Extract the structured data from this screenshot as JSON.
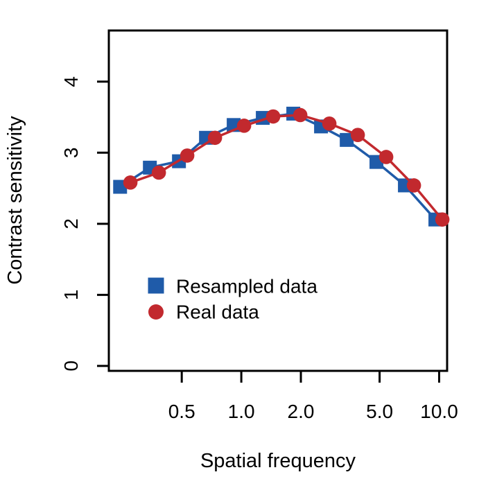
{
  "chart_data": {
    "type": "line",
    "title": "",
    "xlabel": "Spatial frequency",
    "ylabel": "Contrast sensitivity",
    "x_scale": "log",
    "y_scale": "linear",
    "xlim": [
      0.214,
      10.97
    ],
    "ylim": [
      -0.07,
      4.72
    ],
    "grid": false,
    "box": true,
    "x_ticks": {
      "values": [
        0.5,
        1.0,
        2.0,
        5.0,
        10.0
      ],
      "labels": [
        "0.5",
        "1.0",
        "2.0",
        "5.0",
        "10.0"
      ]
    },
    "y_ticks": {
      "values": [
        0,
        1,
        2,
        3,
        4
      ],
      "labels": [
        "0",
        "1",
        "2",
        "3",
        "4"
      ]
    },
    "legend_position": "inside-bottom-left",
    "series": [
      {
        "name": "Resampled data",
        "marker": "square",
        "color": "#1f5ba9",
        "points": [
          [
            0.244,
            2.52
          ],
          [
            0.345,
            2.79
          ],
          [
            0.484,
            2.88
          ],
          [
            0.663,
            3.21
          ],
          [
            0.915,
            3.39
          ],
          [
            1.284,
            3.49
          ],
          [
            1.831,
            3.55
          ],
          [
            2.529,
            3.37
          ],
          [
            3.41,
            3.18
          ],
          [
            4.82,
            2.87
          ],
          [
            6.71,
            2.54
          ],
          [
            9.57,
            2.06
          ]
        ]
      },
      {
        "name": "Real data",
        "marker": "circle",
        "color": "#c2292e",
        "points": [
          [
            0.275,
            2.58
          ],
          [
            0.383,
            2.72
          ],
          [
            0.533,
            2.96
          ],
          [
            0.736,
            3.21
          ],
          [
            1.033,
            3.38
          ],
          [
            1.449,
            3.51
          ],
          [
            1.986,
            3.53
          ],
          [
            2.786,
            3.41
          ],
          [
            3.879,
            3.25
          ],
          [
            5.399,
            2.94
          ],
          [
            7.455,
            2.54
          ],
          [
            10.38,
            2.06
          ]
        ]
      }
    ]
  }
}
